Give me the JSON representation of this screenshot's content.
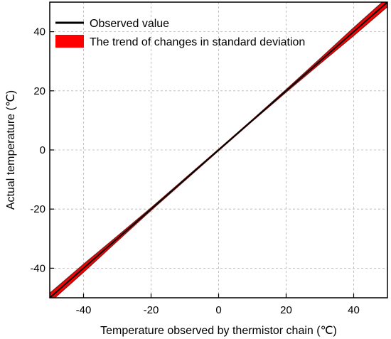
{
  "chart_data": {
    "type": "line",
    "xlabel": "Temperature observed by thermistor chain (℃)",
    "ylabel": "Actual temperature (℃)",
    "xlim": [
      -50,
      50
    ],
    "ylim": [
      -50,
      50
    ],
    "xticks": [
      -40,
      -20,
      0,
      20,
      40
    ],
    "yticks": [
      -40,
      -20,
      0,
      20,
      40
    ],
    "grid": true,
    "legend_position": "top-left",
    "series": [
      {
        "name": "Observed value",
        "kind": "line",
        "color": "#000000",
        "x": [
          -50,
          -40,
          -30,
          -20,
          -10,
          0,
          10,
          20,
          30,
          40,
          50
        ],
        "y": [
          -50,
          -40,
          -30,
          -20,
          -10,
          0,
          10,
          20,
          30,
          40,
          50
        ]
      },
      {
        "name": "The trend of changes in standard deviation",
        "kind": "band",
        "color": "#ff0000",
        "edge_color": "#8b1a1a",
        "x": [
          -50,
          -40,
          -30,
          -20,
          -10,
          0,
          10,
          20,
          30,
          40,
          50
        ],
        "y_lower": [
          -51.5,
          -41.3,
          -30.8,
          -20.4,
          -10.3,
          -0.2,
          9.8,
          19.6,
          29.2,
          38.7,
          48.5
        ],
        "y_upper": [
          -48.5,
          -38.7,
          -29.2,
          -19.6,
          -9.7,
          0.2,
          10.2,
          20.4,
          30.8,
          41.3,
          51.5
        ]
      }
    ]
  }
}
